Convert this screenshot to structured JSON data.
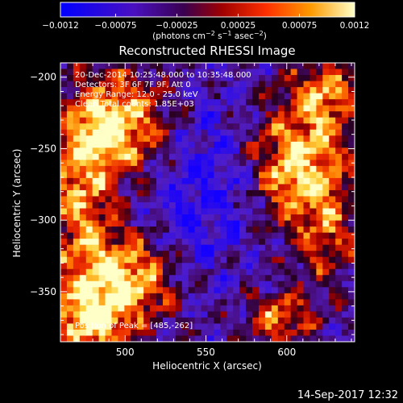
{
  "chart_data": {
    "type": "heatmap",
    "title": "Reconstructed RHESSI Image",
    "xlabel": "Heliocentric X (arcsec)",
    "ylabel": "Heliocentric Y (arcsec)",
    "xlim": [
      460,
      642
    ],
    "ylim": [
      -385,
      -190
    ],
    "xticks": [
      500,
      550,
      600
    ],
    "xtick_labels": [
      "500",
      "550",
      "600"
    ],
    "yticks": [
      -200,
      -250,
      -300,
      -350
    ],
    "ytick_labels": [
      "−200",
      "−250",
      "−300",
      "−350"
    ],
    "colorbar": {
      "range": [
        -0.0012,
        0.0012
      ],
      "ticks": [
        -0.0012,
        -0.00075,
        -0.00025,
        0.00025,
        0.00075,
        0.0012
      ],
      "tick_labels": [
        "−0.0012",
        "−0.00075",
        "−0.00025",
        "0.00025",
        "0.00075",
        "0.0012"
      ],
      "units_prefix": "(photons cm",
      "units_sup1": "−2",
      "units_mid1": " s",
      "units_sup2": "−1",
      "units_mid2": " asec",
      "units_sup3": "−2",
      "units_suffix": ")"
    },
    "annotations": {
      "time_range": "20-Dec-2014 10:25:48.000 to 10:35:48.000",
      "detectors": "Detectors: 3F 6F 7F 9F, Att 0",
      "energy": "Energy Range: 12.0 - 25.0 keV",
      "clean": "Clean   Total counts: 1.85E+03",
      "peak": "Position of Peak = [485,-262]"
    },
    "peak_position": [
      485,
      -262
    ],
    "colors": {
      "background": "#000000",
      "colormap": [
        "#0000ff",
        "#5a1fb0",
        "#a00000",
        "#ff3000",
        "#ff9000",
        "#ffffc0"
      ]
    }
  },
  "footer": {
    "date": "14-Sep-2017 12:32"
  }
}
